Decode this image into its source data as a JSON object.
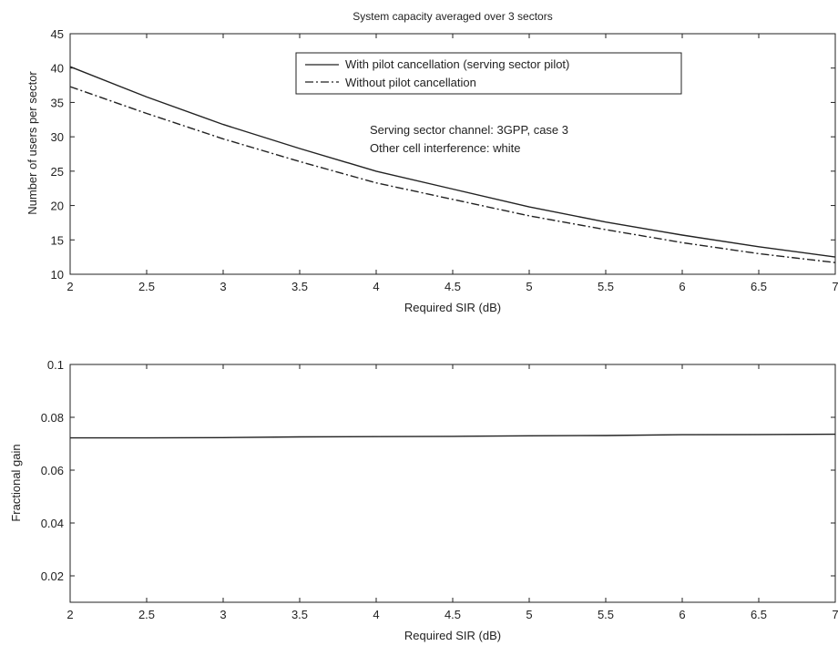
{
  "chart_data": [
    {
      "type": "line",
      "title": "System capacity averaged over 3 sectors",
      "xlabel": "Required SIR (dB)",
      "ylabel": "Number of users per sector",
      "xlim": [
        2,
        7
      ],
      "ylim": [
        10,
        45
      ],
      "xticks": [
        "2",
        "2.5",
        "3",
        "3.5",
        "4",
        "4.5",
        "5",
        "5.5",
        "6",
        "6.5",
        "7"
      ],
      "yticks": [
        "10",
        "15",
        "20",
        "25",
        "30",
        "35",
        "40",
        "45"
      ],
      "grid": false,
      "legend_position": "top-center",
      "annotations": [
        "Serving sector channel: 3GPP, case 3",
        "Other cell interference: white"
      ],
      "series": [
        {
          "name": "With pilot cancellation (serving sector pilot)",
          "style": "solid",
          "x": [
            2,
            2.5,
            3,
            3.5,
            4,
            4.5,
            5,
            5.5,
            6,
            6.5,
            7
          ],
          "y": [
            40.2,
            35.8,
            31.8,
            28.3,
            25.0,
            22.4,
            19.8,
            17.6,
            15.7,
            14.0,
            12.5
          ]
        },
        {
          "name": "Without pilot cancellation",
          "style": "dashdot",
          "x": [
            2,
            2.5,
            3,
            3.5,
            4,
            4.5,
            5,
            5.5,
            6,
            6.5,
            7
          ],
          "y": [
            37.3,
            33.4,
            29.7,
            26.4,
            23.3,
            20.9,
            18.5,
            16.5,
            14.6,
            13.0,
            11.7
          ]
        }
      ]
    },
    {
      "type": "line",
      "xlabel": "Required SIR (dB)",
      "ylabel": "Fractional gain",
      "xlim": [
        2,
        7
      ],
      "ylim": [
        0.01,
        0.1
      ],
      "xticks": [
        "2",
        "2.5",
        "3",
        "3.5",
        "4",
        "4.5",
        "5",
        "5.5",
        "6",
        "6.5",
        "7"
      ],
      "yticks": [
        "0.02",
        "0.04",
        "0.06",
        "0.08",
        "0.1"
      ],
      "ytick_values": [
        0.02,
        0.04,
        0.06,
        0.08,
        0.1
      ],
      "grid": false,
      "series": [
        {
          "style": "solid",
          "x": [
            2,
            2.5,
            3,
            3.5,
            4,
            4.5,
            5,
            5.5,
            6,
            6.5,
            7
          ],
          "y": [
            0.0722,
            0.0722,
            0.0723,
            0.0726,
            0.0727,
            0.0728,
            0.073,
            0.0731,
            0.0734,
            0.0735,
            0.0736
          ]
        }
      ]
    }
  ]
}
